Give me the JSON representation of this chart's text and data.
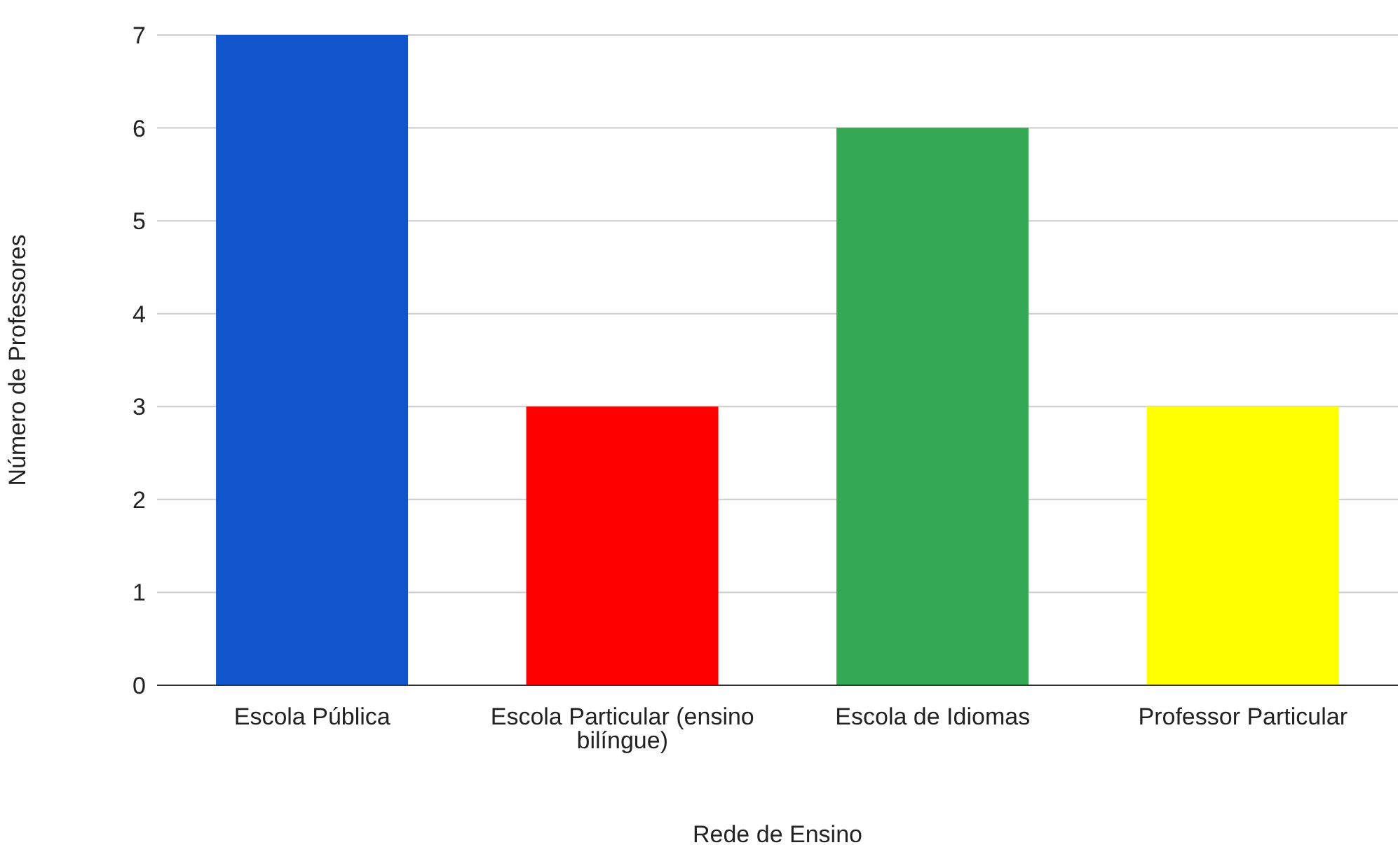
{
  "chart_data": {
    "type": "bar",
    "xlabel": "Rede de Ensino",
    "ylabel": "Número de Professores",
    "categories": [
      "Escola Pública",
      "Escola Particular (ensino bilíngue)",
      "Escola de Idiomas",
      "Professor Particular"
    ],
    "values": [
      7,
      3,
      6,
      3
    ],
    "colors": [
      "#1155cc",
      "#ff0000",
      "#34a853",
      "#ffff00"
    ],
    "ylim": [
      0,
      7
    ],
    "yticks": [
      0,
      1,
      2,
      3,
      4,
      5,
      6,
      7
    ],
    "grid": "y"
  }
}
